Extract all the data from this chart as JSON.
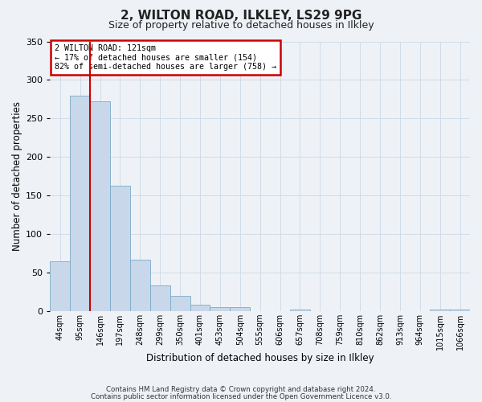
{
  "title": "2, WILTON ROAD, ILKLEY, LS29 9PG",
  "subtitle": "Size of property relative to detached houses in Ilkley",
  "xlabel": "Distribution of detached houses by size in Ilkley",
  "ylabel": "Number of detached properties",
  "footer_lines": [
    "Contains HM Land Registry data © Crown copyright and database right 2024.",
    "Contains public sector information licensed under the Open Government Licence v3.0."
  ],
  "bar_labels": [
    "44sqm",
    "95sqm",
    "146sqm",
    "197sqm",
    "248sqm",
    "299sqm",
    "350sqm",
    "401sqm",
    "453sqm",
    "504sqm",
    "555sqm",
    "606sqm",
    "657sqm",
    "708sqm",
    "759sqm",
    "810sqm",
    "862sqm",
    "913sqm",
    "964sqm",
    "1015sqm",
    "1066sqm"
  ],
  "bar_values": [
    65,
    280,
    272,
    163,
    67,
    34,
    20,
    9,
    5,
    5,
    0,
    0,
    2,
    0,
    0,
    0,
    0,
    0,
    0,
    2,
    2
  ],
  "bar_color": "#c8d8ea",
  "bar_edge_color": "#7aaac8",
  "ylim": [
    0,
    350
  ],
  "yticks": [
    0,
    50,
    100,
    150,
    200,
    250,
    300,
    350
  ],
  "marker_label": "2 WILTON ROAD: 121sqm",
  "annotation_line1": "← 17% of detached houses are smaller (154)",
  "annotation_line2": "82% of semi-detached houses are larger (758) →",
  "annotation_box_color": "#ffffff",
  "annotation_box_edge": "#cc0000",
  "marker_line_color": "#cc0000",
  "grid_color": "#d0dce8",
  "background_color": "#eef2f7"
}
